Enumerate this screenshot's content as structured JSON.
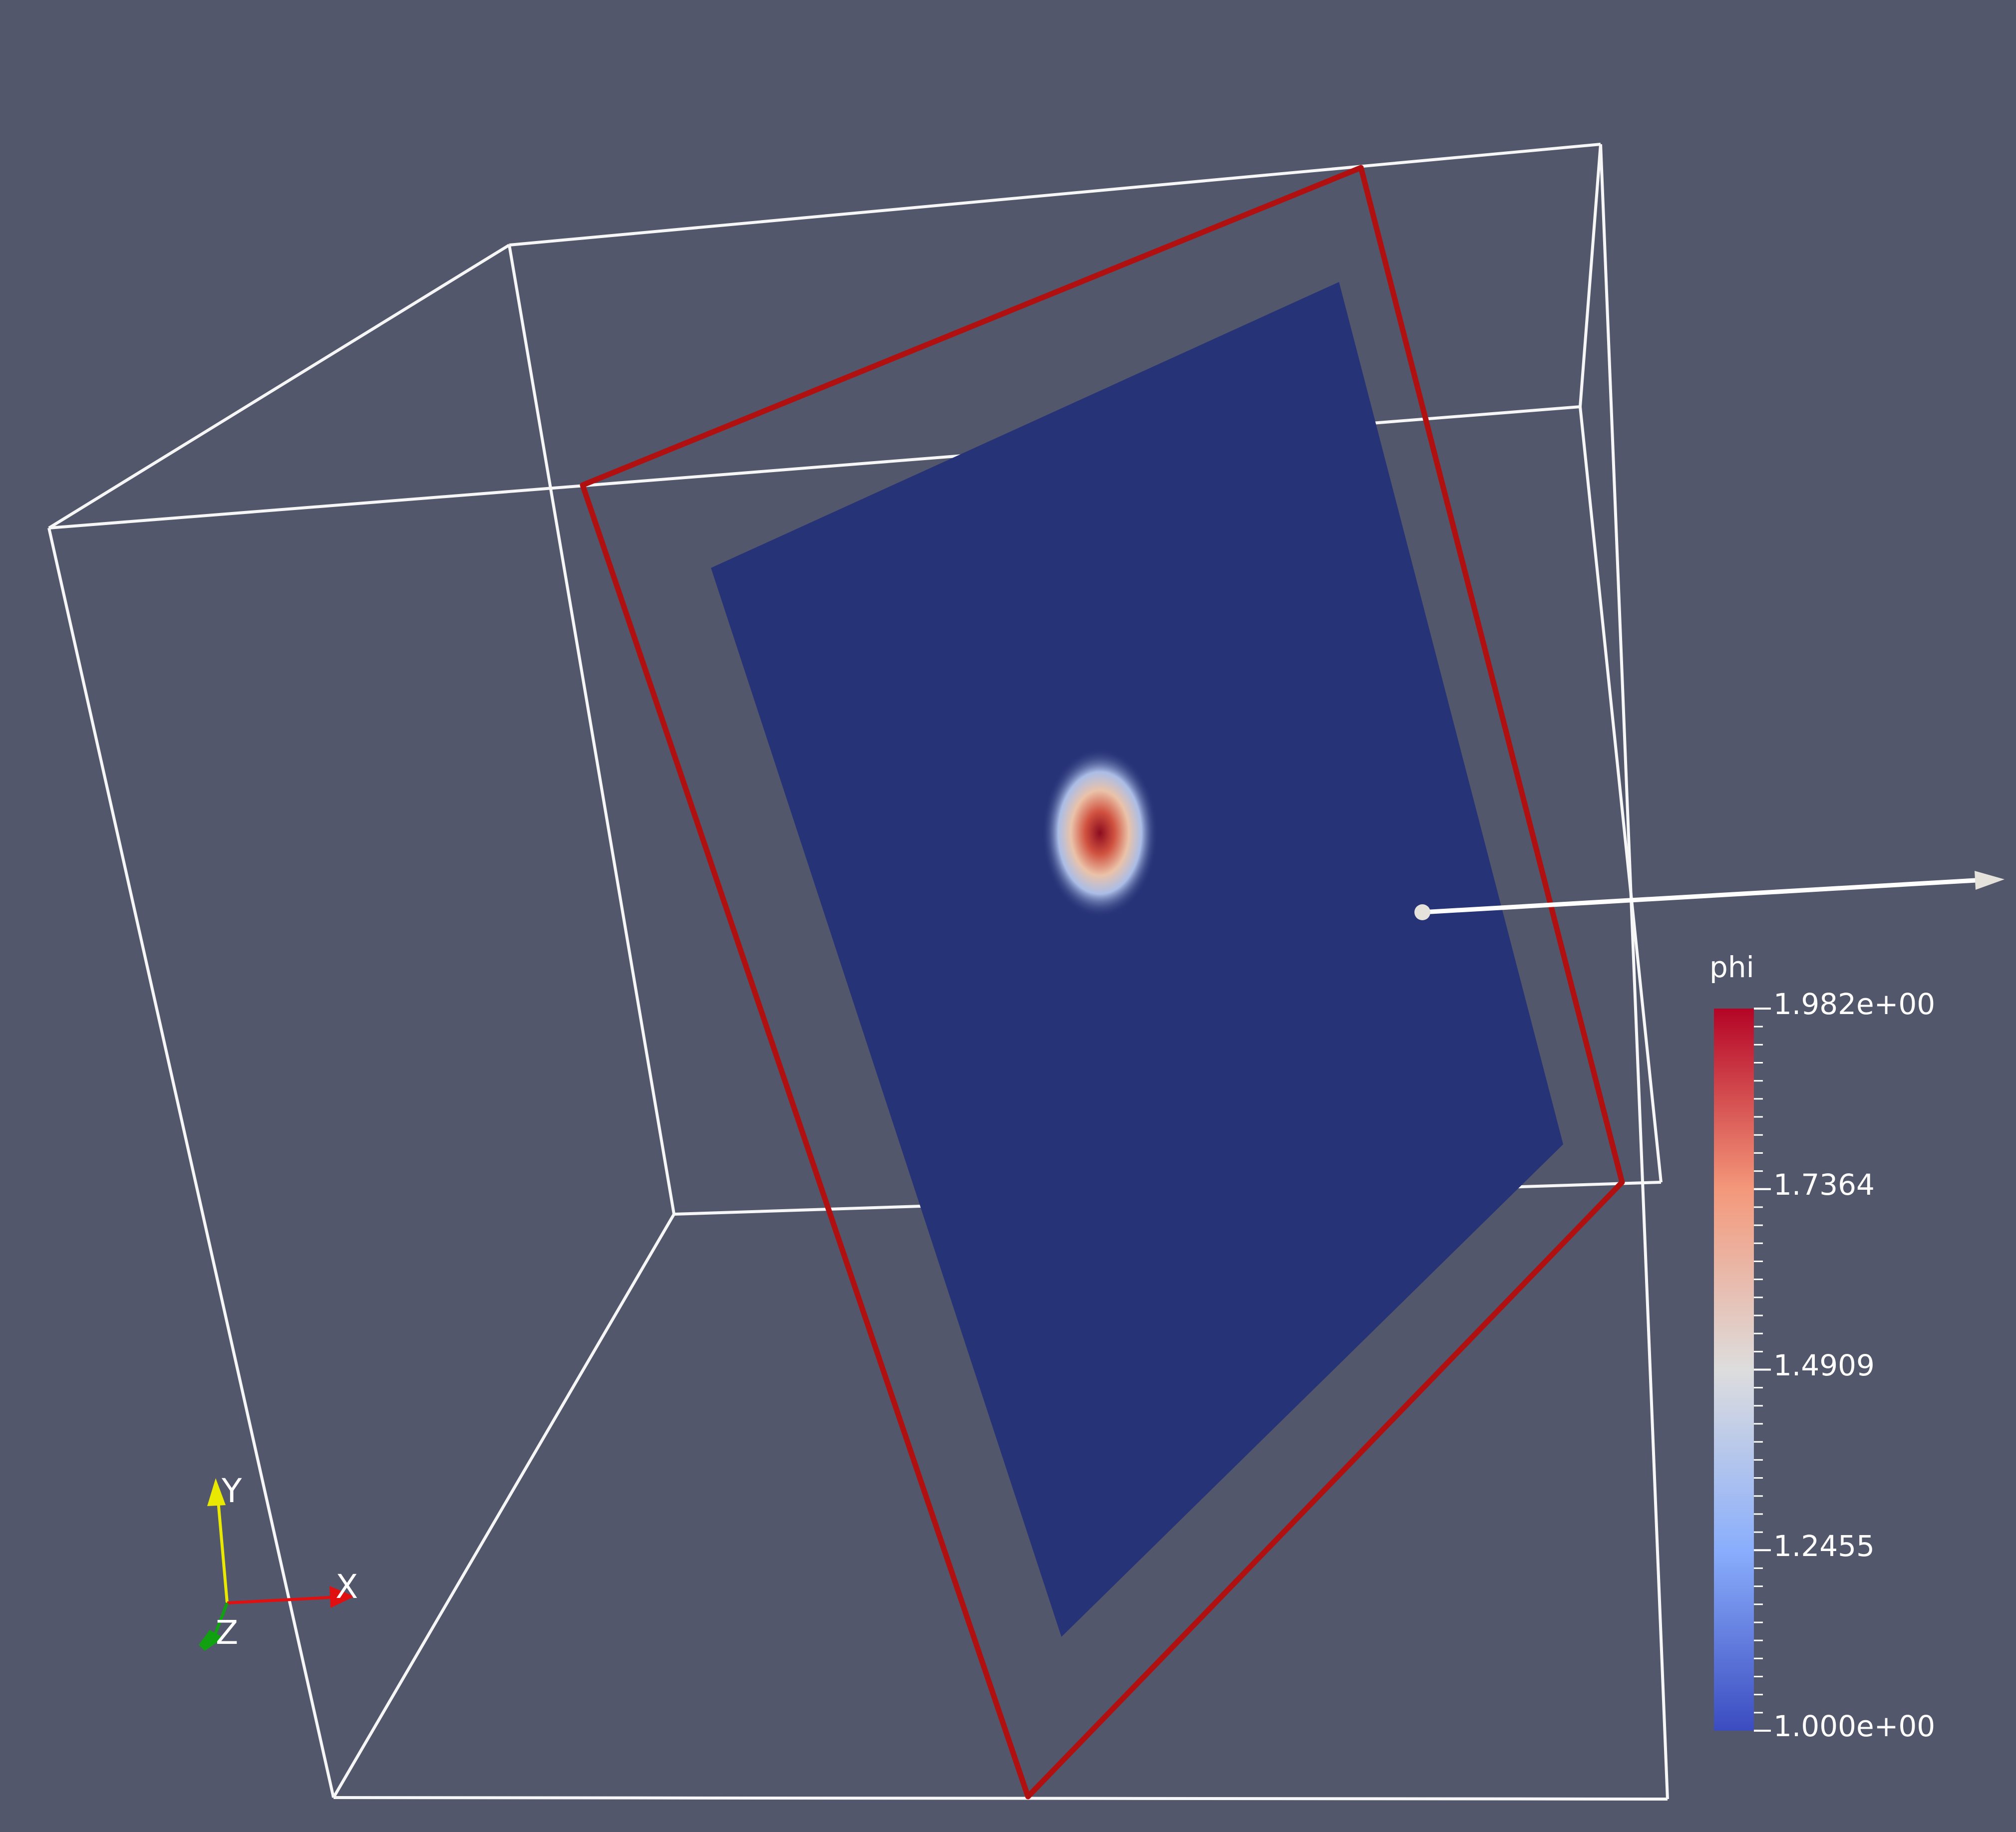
{
  "scene": {
    "background_color": "#52576b",
    "outline_color": "#ffffff",
    "plane_widget_color": "#b01010",
    "slice_color": "#273377"
  },
  "color_legend": {
    "title": "phi",
    "tick_labels": [
      "1.982e+00",
      "1.7364",
      "1.4909",
      "1.2455",
      "1.000e+00"
    ],
    "range": [
      1.0,
      1.982
    ],
    "colors": [
      "#3b4cc0",
      "#dddddd",
      "#b40426"
    ]
  },
  "orientation_axes": {
    "x_label": "X",
    "y_label": "Y",
    "z_label": "Z",
    "x_color": "#e01010",
    "y_color": "#e8e800",
    "z_color": "#10a010"
  }
}
